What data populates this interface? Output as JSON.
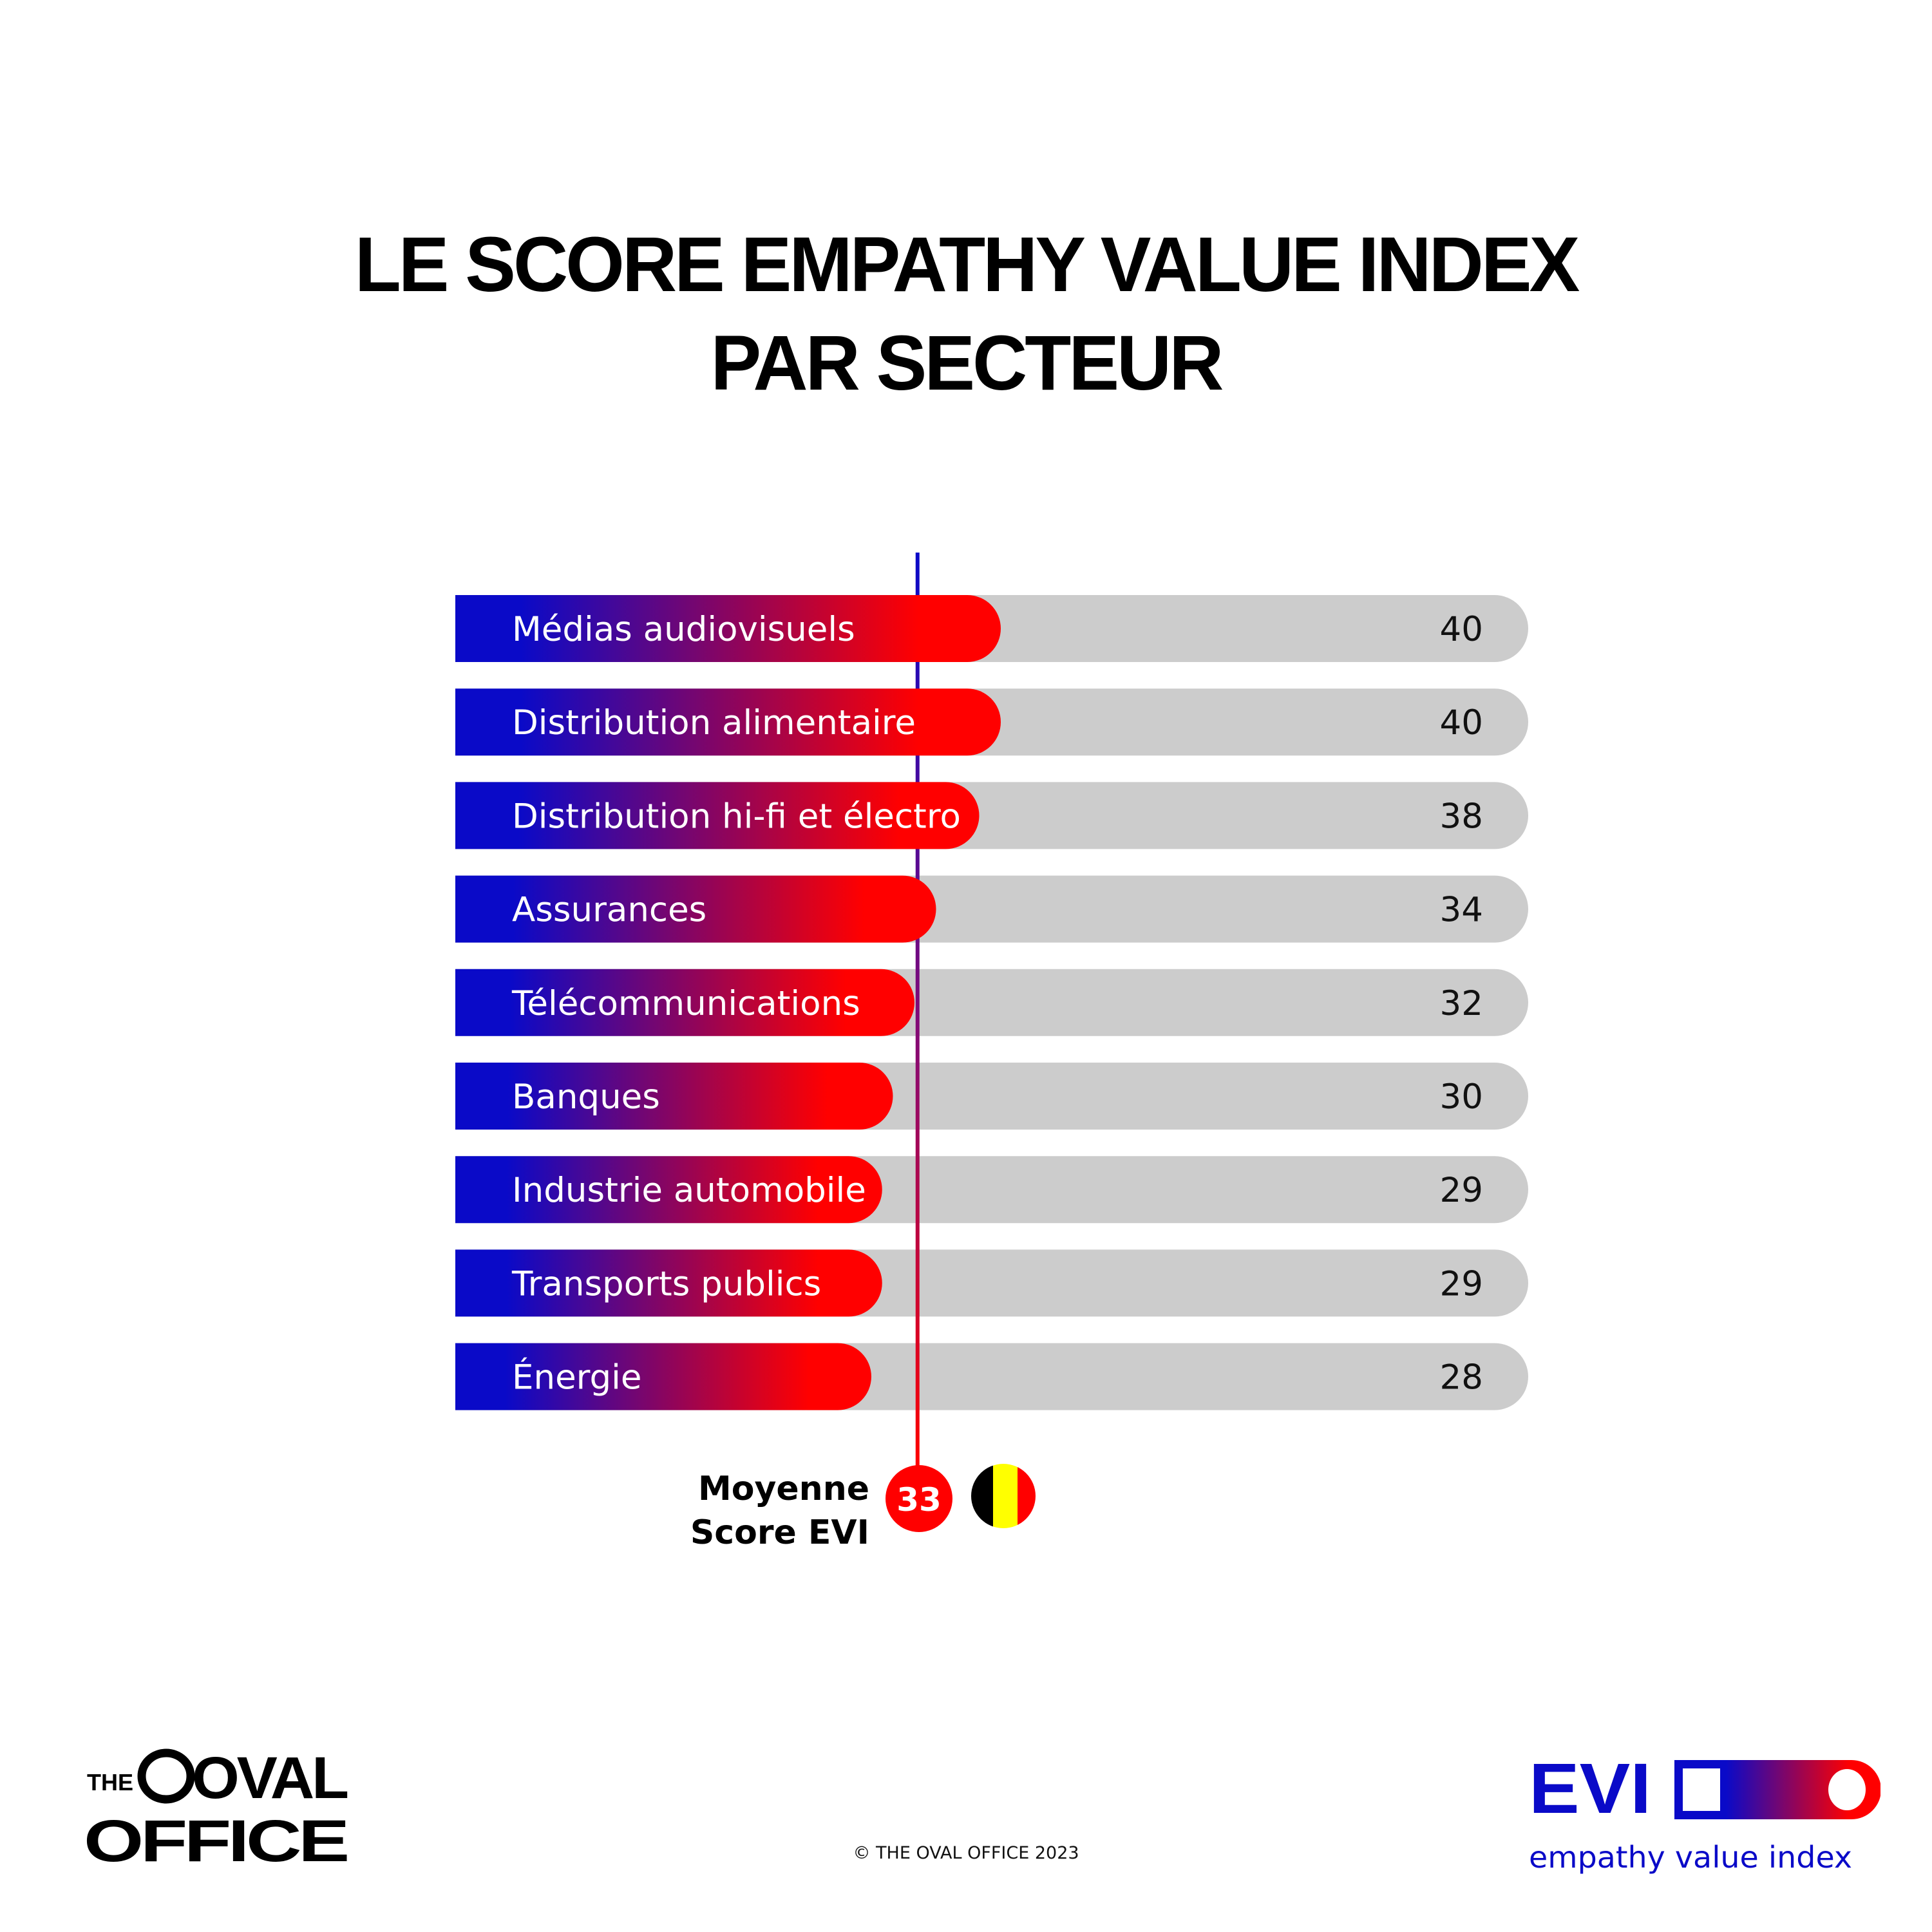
{
  "title": {
    "line1": "LE SCORE EMPATHY VALUE INDEX",
    "line2": "PAR SECTEUR"
  },
  "colors": {
    "bar_start": "#0a0ac8",
    "bar_end": "#ff0000",
    "track": "#cccccc",
    "average_line_top": "#0a0ac8",
    "average_line_bottom": "#ff0000",
    "flag_black": "#000000",
    "flag_yellow": "#ffff00",
    "flag_red": "#ff0000",
    "evi_blue": "#0a0ac8"
  },
  "chart_data": {
    "type": "bar",
    "orientation": "horizontal",
    "title": "LE SCORE EMPATHY VALUE INDEX PAR SECTEUR",
    "categories": [
      "Médias audiovisuels",
      "Distribution alimentaire",
      "Distribution hi-fi et électro",
      "Assurances",
      "Télécommunications",
      "Banques",
      "Industrie automobile",
      "Transports publics",
      "Énergie"
    ],
    "values": [
      40,
      40,
      38,
      34,
      32,
      30,
      29,
      29,
      28
    ],
    "xlabel": "",
    "ylabel": "",
    "grid": false,
    "legend": "none",
    "reference_line": {
      "label_line1": "Moyenne",
      "label_line2": "Score EVI",
      "value": 33,
      "value_label": "33",
      "flag": "belgium-flag"
    }
  },
  "footer": {
    "copyright": "© THE OVAL OFFICE 2023",
    "oval_logo": {
      "the": "THE",
      "oval": "OVAL",
      "office": "OFFICE"
    },
    "evi_logo": {
      "acronym": "EVI",
      "tagline": "empathy value index",
      "icon": "toggle-switch-icon"
    }
  }
}
